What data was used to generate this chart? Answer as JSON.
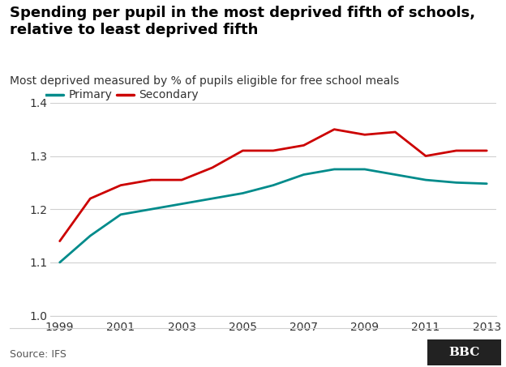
{
  "title_line1": "Spending per pupil in the most deprived fifth of schools,",
  "title_line2": "relative to least deprived fifth",
  "subtitle": "Most deprived measured by % of pupils eligible for free school meals",
  "primary_label": "Primary",
  "secondary_label": "Secondary",
  "primary_color": "#008B8B",
  "secondary_color": "#cc0000",
  "source_text": "Source: IFS",
  "years": [
    1999,
    2000,
    2001,
    2002,
    2003,
    2004,
    2005,
    2006,
    2007,
    2008,
    2009,
    2010,
    2011,
    2012,
    2013
  ],
  "primary": [
    1.1,
    1.15,
    1.19,
    1.2,
    1.21,
    1.22,
    1.23,
    1.245,
    1.265,
    1.275,
    1.275,
    1.265,
    1.255,
    1.25,
    1.248
  ],
  "secondary": [
    1.14,
    1.22,
    1.245,
    1.255,
    1.255,
    1.278,
    1.31,
    1.31,
    1.32,
    1.35,
    1.34,
    1.345,
    1.3,
    1.31,
    1.31
  ],
  "xlim_lo": 1999,
  "xlim_hi": 2013,
  "ylim_lo": 1.0,
  "ylim_hi": 1.4,
  "yticks": [
    1.0,
    1.1,
    1.2,
    1.3,
    1.4
  ],
  "xticks": [
    1999,
    2001,
    2003,
    2005,
    2007,
    2009,
    2011,
    2013
  ],
  "background_color": "#ffffff",
  "plot_bg_color": "#ffffff",
  "grid_color": "#d0d0d0",
  "title_fontsize": 13,
  "subtitle_fontsize": 10,
  "tick_fontsize": 10,
  "legend_fontsize": 10,
  "source_fontsize": 9,
  "line_width": 2.0,
  "title_color": "#000000",
  "subtitle_color": "#333333",
  "tick_color": "#333333",
  "source_color": "#555555"
}
